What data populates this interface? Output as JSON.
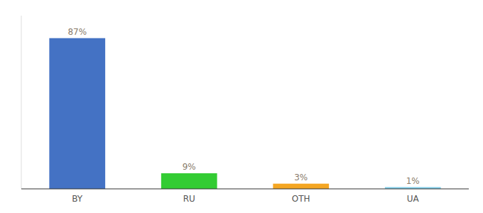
{
  "chart_data": {
    "type": "bar",
    "categories": [
      "BY",
      "RU",
      "OTH",
      "UA"
    ],
    "values": [
      87,
      9,
      3,
      1
    ],
    "value_labels": [
      "87%",
      "9%",
      "3%",
      "1%"
    ],
    "colors": [
      "#4472c4",
      "#33cc33",
      "#f4a623",
      "#80cce8"
    ],
    "ylim": [
      0,
      100
    ],
    "data_labels": true,
    "tick_labels": "x",
    "grid": false
  }
}
